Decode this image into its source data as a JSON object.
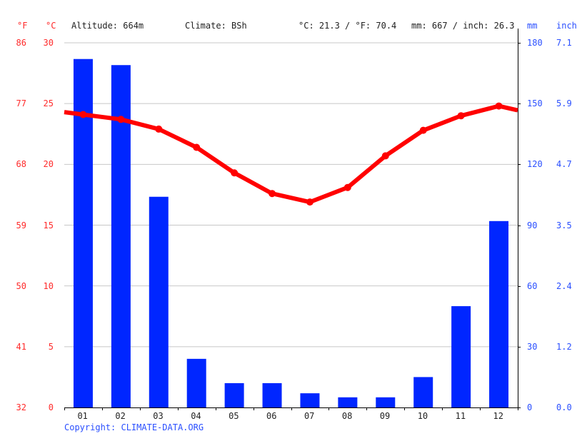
{
  "header": {
    "unit_f": "°F",
    "unit_c": "°C",
    "altitude": "Altitude: 664m",
    "climate": "Climate: BSh",
    "avg_temp": "°C: 21.3 / °F: 70.4",
    "annual_precip": "mm: 667 / inch: 26.3",
    "unit_mm": "mm",
    "unit_inch": "inch"
  },
  "axes": {
    "left_f": [
      "86",
      "77",
      "68",
      "59",
      "50",
      "41",
      "32"
    ],
    "left_c": [
      "30",
      "25",
      "20",
      "15",
      "10",
      "5",
      "0"
    ],
    "right_mm": [
      "180",
      "150",
      "120",
      "90",
      "60",
      "30",
      "0"
    ],
    "right_inch": [
      "7.1",
      "5.9",
      "4.7",
      "3.5",
      "2.4",
      "1.2",
      "0.0"
    ]
  },
  "footer": {
    "copyright": "Copyright: CLIMATE-DATA.ORG"
  },
  "colors": {
    "precip_bar": "#0026ff",
    "temp_line": "#ff0000",
    "grid": "#c8c8c8",
    "axis": "#000000",
    "temp_labels": "#ff2a2a",
    "precip_labels": "#2a4fff"
  },
  "chart_data": {
    "type": "bar+line",
    "title": "",
    "categories": [
      "01",
      "02",
      "03",
      "04",
      "05",
      "06",
      "07",
      "08",
      "09",
      "10",
      "11",
      "12"
    ],
    "series": [
      {
        "name": "Precipitation (mm)",
        "type": "bar",
        "axis": "right",
        "values": [
          172,
          169,
          104,
          24,
          12,
          12,
          7,
          5,
          5,
          15,
          50,
          92
        ]
      },
      {
        "name": "Temperature (°C)",
        "type": "line",
        "axis": "left",
        "values": [
          24.1,
          23.7,
          22.9,
          21.4,
          19.3,
          17.6,
          16.9,
          18.1,
          20.7,
          22.8,
          24.0,
          24.8
        ]
      }
    ],
    "xlabel": "",
    "ylabel_left": "°C / °F",
    "ylabel_right": "mm / inch",
    "ylim_left_c": [
      0,
      30
    ],
    "ylim_left_f": [
      32,
      86
    ],
    "ylim_right_mm": [
      0,
      180
    ],
    "ylim_right_inch": [
      0.0,
      7.1
    ],
    "left_ticks_c": [
      0,
      5,
      10,
      15,
      20,
      25,
      30
    ],
    "left_ticks_f": [
      32,
      41,
      50,
      59,
      68,
      77,
      86
    ],
    "right_ticks_mm": [
      0,
      30,
      60,
      90,
      120,
      150,
      180
    ],
    "right_ticks_inch": [
      0.0,
      1.2,
      2.4,
      3.5,
      4.7,
      5.9,
      7.1
    ],
    "grid": true,
    "legend": "none",
    "annotations": [
      "Altitude: 664m",
      "Climate: BSh",
      "°C: 21.3 / °F: 70.4",
      "mm: 667 / inch: 26.3"
    ]
  }
}
